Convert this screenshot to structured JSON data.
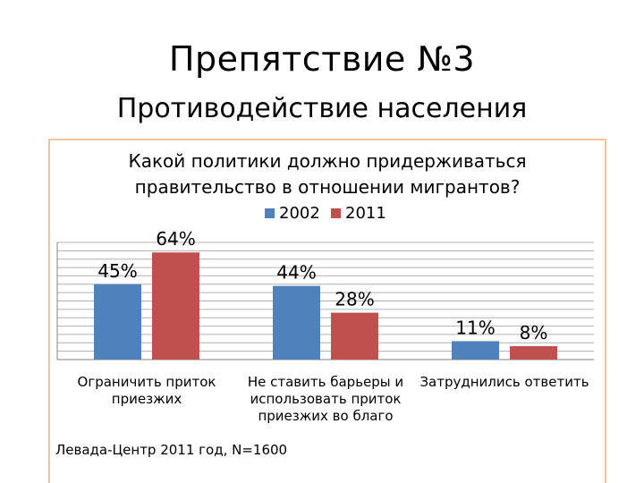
{
  "slide": {
    "title": "Препятствие №3",
    "subtitle": "Противодействие населения"
  },
  "source": "Левада-Центр 2011 год, N=1600",
  "colors": {
    "2002": "#4f81bd",
    "2011": "#c0504d",
    "frame": "#f0c39a",
    "grid": "#b0b0b0"
  },
  "chart_data": {
    "type": "bar",
    "title": [
      "Какой политики должно придерживаться",
      "правительство в отношении мигрантов?"
    ],
    "categories": [
      [
        "Ограничить приток",
        "приезжих"
      ],
      [
        "Не ставить барьеры и",
        "использовать приток",
        "приезжих во благо"
      ],
      [
        "Затруднились ответить"
      ]
    ],
    "series": [
      {
        "name": "2002",
        "values": [
          45,
          44,
          11
        ],
        "labels": [
          "45%",
          "44%",
          "11%"
        ]
      },
      {
        "name": "2011",
        "values": [
          64,
          28,
          8
        ],
        "labels": [
          "64%",
          "28%",
          "8%"
        ]
      }
    ],
    "ylim": [
      0,
      70
    ],
    "grid": true,
    "legend": "top-center"
  }
}
